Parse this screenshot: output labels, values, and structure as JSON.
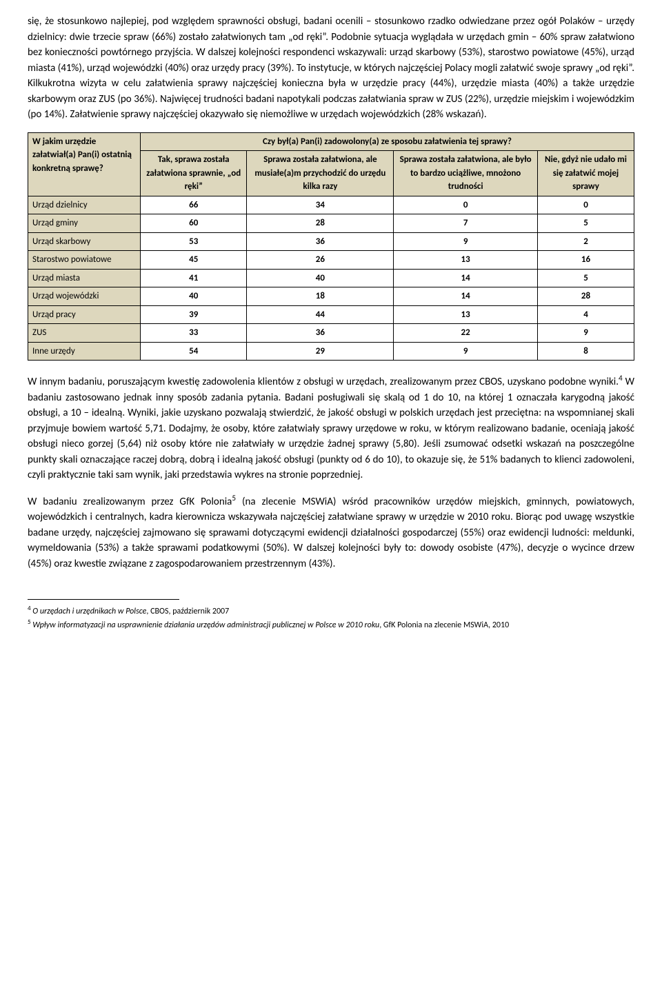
{
  "para1": "się, że stosunkowo najlepiej, pod względem sprawności obsługi, badani ocenili – stosunkowo rzadko odwiedzane przez ogół Polaków – urzędy dzielnicy: dwie trzecie spraw (66%) zostało załatwionych tam „od ręki”. Podobnie sytuacja wyglądała w urzędach gmin – 60% spraw załatwiono bez konieczności powtórnego przyjścia. W dalszej kolejności respondenci wskazywali: urząd skarbowy (53%), starostwo powiatowe (45%), urząd miasta (41%), urząd wojewódzki (40%) oraz urzędy pracy (39%). To instytucje, w których najczęściej Polacy mogli załatwić swoje sprawy „od ręki”. Kilkukrotna wizyta w celu załatwienia sprawy najczęściej konieczna była w urzędzie pracy (44%), urzędzie miasta (40%) a także urzędzie skarbowym oraz ZUS (po 36%). Najwięcej trudności badani napotykali podczas załatwiania spraw w ZUS (22%), urzędzie miejskim i wojewódzkim (po 14%). Załatwienie sprawy najczęściej okazywało się niemożliwe w urzędach wojewódzkich (28% wskazań).",
  "table": {
    "corner": "W jakim urzędzie załatwiał(a) Pan(i) ostatnią konkretną sprawę?",
    "spanHeader": "Czy był(a) Pan(i) zadowolony(a) ze sposobu załatwienia tej sprawy?",
    "cols": [
      "Tak, sprawa została załatwiona sprawnie, „od ręki”",
      "Sprawa została załatwiona, ale musiałe(a)m przychodzić do urzędu kilka razy",
      "Sprawa została załatwiona, ale było to bardzo uciążliwe, mnożono trudności",
      "Nie, gdyż nie udało mi się załatwić mojej sprawy"
    ],
    "rows": [
      {
        "label": "Urząd dzielnicy",
        "v": [
          "66",
          "34",
          "0",
          "0"
        ]
      },
      {
        "label": "Urząd gminy",
        "v": [
          "60",
          "28",
          "7",
          "5"
        ]
      },
      {
        "label": "Urząd skarbowy",
        "v": [
          "53",
          "36",
          "9",
          "2"
        ]
      },
      {
        "label": "Starostwo powiatowe",
        "v": [
          "45",
          "26",
          "13",
          "16"
        ]
      },
      {
        "label": "Urząd miasta",
        "v": [
          "41",
          "40",
          "14",
          "5"
        ]
      },
      {
        "label": "Urząd wojewódzki",
        "v": [
          "40",
          "18",
          "14",
          "28"
        ]
      },
      {
        "label": "Urząd pracy",
        "v": [
          "39",
          "44",
          "13",
          "4"
        ]
      },
      {
        "label": "ZUS",
        "v": [
          "33",
          "36",
          "22",
          "9"
        ]
      },
      {
        "label": "Inne urzędy",
        "v": [
          "54",
          "29",
          "9",
          "8"
        ]
      }
    ]
  },
  "para2a": "W innym badaniu, poruszającym kwestię zadowolenia klientów z obsługi w urzędach, zrealizowanym przez CBOS, uzyskano podobne wyniki.",
  "para2b": " W badaniu zastosowano jednak inny sposób zadania pytania. Badani posługiwali się skalą od 1 do 10, na której 1 oznaczała karygodną jakość obsługi, a 10 – idealną. Wyniki, jakie uzyskano pozwalają stwierdzić, że jakość obsługi w polskich urzędach jest przeciętna: na wspomnianej skali przyjmuje bowiem wartość 5,71. Dodajmy, że osoby, które załatwiały sprawy urzędowe w roku, w którym realizowano badanie, oceniają jakość obsługi nieco gorzej (5,64) niż osoby które nie załatwiały w urzędzie żadnej sprawy (5,80). Jeśli zsumować odsetki wskazań na poszczególne punkty skali oznaczające raczej dobrą, dobrą i idealną jakość obsługi (punkty od 6 do 10), to okazuje się, że 51% badanych to klienci zadowoleni, czyli praktycznie taki sam wynik, jaki przedstawia wykres na stronie poprzedniej.",
  "para3a": "W badaniu zrealizowanym przez GfK Polonia",
  "para3b": " (na zlecenie MSWiA) wśród pracowników urzędów miejskich, gminnych, powiatowych, wojewódzkich i centralnych, kadra kierownicza wskazywała najczęściej załatwiane sprawy w urzędzie w 2010 roku. Biorąc pod uwagę wszystkie badane urzędy, najczęściej zajmowano się sprawami dotyczącymi ewidencji działalności gospodarczej (55%) oraz ewidencji ludności: meldunki, wymeldowania (53%) a także sprawami podatkowymi (50%). W dalszej kolejności były to: dowody osobiste (47%), decyzje o wycince drzew (45%) oraz kwestie związane z zagospodarowaniem przestrzennym (43%).",
  "fn4_num": "4",
  "fn4_italic": "O urzędach i urzędnikach w Polsce",
  "fn4_rest": ", CBOS, październik 2007",
  "fn5_num": "5",
  "fn5_italic": "Wpływ informatyzacji na usprawnienie działania urzędów administracji publicznej w Polsce w 2010 roku",
  "fn5_rest": ", GfK Polonia na zlecenie MSWiA, 2010"
}
